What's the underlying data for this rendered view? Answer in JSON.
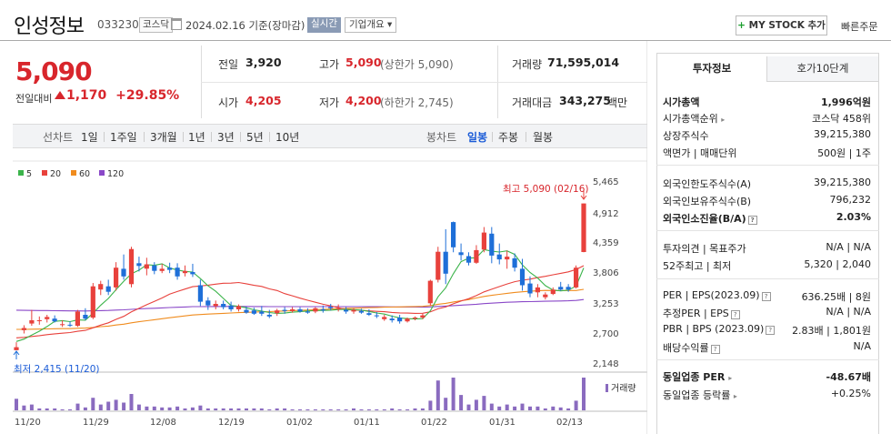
{
  "header": {
    "name": "인성정보",
    "code": "033230",
    "market_tag": "코스닥",
    "date_text": "2024.02.16 기준(장마감)",
    "realtime_label": "실시간",
    "company_info_label": "기업개요 ▾",
    "mystock_label": "MY STOCK 추가",
    "quick_order_label": "빠른주문"
  },
  "price": {
    "current": "5,090",
    "prev_label": "전일대비",
    "change": "1,170",
    "change_pct": "+29.85%"
  },
  "stats": {
    "prev_close_label": "전일",
    "prev_close": "3,920",
    "high_label": "고가",
    "high": "5,090",
    "upper_limit": "(상한가 5,090)",
    "volume_label": "거래량",
    "volume": "71,595,014",
    "open_label": "시가",
    "open": "4,205",
    "low_label": "저가",
    "low": "4,200",
    "lower_limit": "(하한가 2,745)",
    "amount_label": "거래대금",
    "amount": "343,275",
    "amount_unit": "백만"
  },
  "period_tabs": {
    "line_label": "선차트",
    "line_items": [
      "1일",
      "1주일",
      "3개월",
      "1년",
      "3년",
      "5년",
      "10년"
    ],
    "candle_label": "봉차트",
    "candle_items": [
      "일봉",
      "주봉",
      "월봉"
    ],
    "candle_selected": "일봉"
  },
  "chart_data": {
    "type": "candlestick",
    "legend": [
      "5",
      "20",
      "60",
      "120"
    ],
    "colors": {
      "ma5": "#3cb44b",
      "ma20": "#e8413c",
      "ma60": "#f08c1e",
      "ma120": "#8a48c8",
      "up": "#e8413c",
      "down": "#1e6fd8"
    },
    "y_ticks": [
      "5,465",
      "4,912",
      "4,359",
      "3,806",
      "3,253",
      "2,700",
      "2,148"
    ],
    "ylim": [
      2148,
      5465
    ],
    "x_ticks": [
      "11/20",
      "11/29",
      "12/08",
      "12/19",
      "01/02",
      "01/11",
      "01/22",
      "01/31",
      "02/13"
    ],
    "high_marker": "최고 5,090 (02/16)",
    "low_marker": "최저 2,415 (11/20)",
    "volume_label": "거래량",
    "candles": [
      {
        "o": 2415,
        "h": 2560,
        "l": 2415,
        "c": 2470
      },
      {
        "o": 2780,
        "h": 2870,
        "l": 2720,
        "c": 2820
      },
      {
        "o": 2900,
        "h": 3150,
        "l": 2860,
        "c": 2960
      },
      {
        "o": 2950,
        "h": 3030,
        "l": 2880,
        "c": 2960
      },
      {
        "o": 2980,
        "h": 3060,
        "l": 2920,
        "c": 3020
      },
      {
        "o": 2990,
        "h": 3050,
        "l": 2920,
        "c": 2940
      },
      {
        "o": 2880,
        "h": 2960,
        "l": 2840,
        "c": 2890
      },
      {
        "o": 2880,
        "h": 2940,
        "l": 2840,
        "c": 2870
      },
      {
        "o": 2860,
        "h": 3150,
        "l": 2840,
        "c": 3120
      },
      {
        "o": 3060,
        "h": 3180,
        "l": 2960,
        "c": 2990
      },
      {
        "o": 3010,
        "h": 3640,
        "l": 2980,
        "c": 3580
      },
      {
        "o": 3520,
        "h": 3680,
        "l": 3420,
        "c": 3620
      },
      {
        "o": 3580,
        "h": 3700,
        "l": 3420,
        "c": 3480
      },
      {
        "o": 3560,
        "h": 4020,
        "l": 3500,
        "c": 3920
      },
      {
        "o": 3900,
        "h": 4160,
        "l": 3700,
        "c": 3760
      },
      {
        "o": 3620,
        "h": 4300,
        "l": 3560,
        "c": 4260
      },
      {
        "o": 4000,
        "h": 4120,
        "l": 3850,
        "c": 3950
      },
      {
        "o": 3900,
        "h": 4100,
        "l": 3780,
        "c": 3980
      },
      {
        "o": 3960,
        "h": 4020,
        "l": 3800,
        "c": 3860
      },
      {
        "o": 3860,
        "h": 3990,
        "l": 3820,
        "c": 3900
      },
      {
        "o": 3920,
        "h": 4010,
        "l": 3820,
        "c": 3880
      },
      {
        "o": 3920,
        "h": 4000,
        "l": 3700,
        "c": 3760
      },
      {
        "o": 3820,
        "h": 3960,
        "l": 3760,
        "c": 3860
      },
      {
        "o": 3840,
        "h": 3990,
        "l": 3750,
        "c": 3800
      },
      {
        "o": 3600,
        "h": 3700,
        "l": 3220,
        "c": 3300
      },
      {
        "o": 3320,
        "h": 3380,
        "l": 3150,
        "c": 3230
      },
      {
        "o": 3220,
        "h": 3320,
        "l": 3160,
        "c": 3260
      },
      {
        "o": 3260,
        "h": 3320,
        "l": 3160,
        "c": 3200
      },
      {
        "o": 3230,
        "h": 3300,
        "l": 3120,
        "c": 3160
      },
      {
        "o": 3160,
        "h": 3250,
        "l": 3120,
        "c": 3220
      },
      {
        "o": 3150,
        "h": 3210,
        "l": 3080,
        "c": 3100
      },
      {
        "o": 3140,
        "h": 3190,
        "l": 3060,
        "c": 3080
      },
      {
        "o": 3120,
        "h": 3220,
        "l": 3040,
        "c": 3080
      },
      {
        "o": 3060,
        "h": 3150,
        "l": 3000,
        "c": 3030
      },
      {
        "o": 3090,
        "h": 3170,
        "l": 3040,
        "c": 3140
      },
      {
        "o": 3150,
        "h": 3200,
        "l": 3080,
        "c": 3130
      },
      {
        "o": 3130,
        "h": 3200,
        "l": 3100,
        "c": 3160
      },
      {
        "o": 3160,
        "h": 3200,
        "l": 3100,
        "c": 3120
      },
      {
        "o": 3120,
        "h": 3180,
        "l": 3080,
        "c": 3100
      },
      {
        "o": 3120,
        "h": 3200,
        "l": 3090,
        "c": 3180
      },
      {
        "o": 3160,
        "h": 3230,
        "l": 3100,
        "c": 3140
      },
      {
        "o": 3200,
        "h": 3260,
        "l": 3140,
        "c": 3180
      },
      {
        "o": 3170,
        "h": 3250,
        "l": 3120,
        "c": 3180
      },
      {
        "o": 3150,
        "h": 3200,
        "l": 3080,
        "c": 3120
      },
      {
        "o": 3120,
        "h": 3180,
        "l": 3080,
        "c": 3150
      },
      {
        "o": 3130,
        "h": 3170,
        "l": 3080,
        "c": 3100
      },
      {
        "o": 3090,
        "h": 3160,
        "l": 3040,
        "c": 3060
      },
      {
        "o": 3050,
        "h": 3110,
        "l": 3000,
        "c": 3040
      },
      {
        "o": 2980,
        "h": 3060,
        "l": 2950,
        "c": 3020
      },
      {
        "o": 2990,
        "h": 3050,
        "l": 2920,
        "c": 2960
      },
      {
        "o": 3010,
        "h": 3060,
        "l": 2900,
        "c": 2940
      },
      {
        "o": 2940,
        "h": 3010,
        "l": 2920,
        "c": 2990
      },
      {
        "o": 2990,
        "h": 3030,
        "l": 2960,
        "c": 3010
      },
      {
        "o": 3010,
        "h": 3080,
        "l": 2980,
        "c": 3050
      },
      {
        "o": 3270,
        "h": 3700,
        "l": 3230,
        "c": 3680
      },
      {
        "o": 3700,
        "h": 4300,
        "l": 3650,
        "c": 4210
      },
      {
        "o": 4210,
        "h": 4620,
        "l": 3620,
        "c": 3810
      },
      {
        "o": 4750,
        "h": 4760,
        "l": 4200,
        "c": 4290
      },
      {
        "o": 4200,
        "h": 4360,
        "l": 4050,
        "c": 4150
      },
      {
        "o": 4130,
        "h": 4200,
        "l": 3960,
        "c": 4010
      },
      {
        "o": 4010,
        "h": 4330,
        "l": 3990,
        "c": 4240
      },
      {
        "o": 4250,
        "h": 4660,
        "l": 4200,
        "c": 4560
      },
      {
        "o": 4540,
        "h": 4660,
        "l": 4000,
        "c": 4140
      },
      {
        "o": 4160,
        "h": 4360,
        "l": 3980,
        "c": 4070
      },
      {
        "o": 4070,
        "h": 4230,
        "l": 3900,
        "c": 4120
      },
      {
        "o": 4090,
        "h": 4180,
        "l": 3850,
        "c": 3920
      },
      {
        "o": 3900,
        "h": 4080,
        "l": 3500,
        "c": 3600
      },
      {
        "o": 3630,
        "h": 3760,
        "l": 3380,
        "c": 3450
      },
      {
        "o": 3470,
        "h": 3620,
        "l": 3380,
        "c": 3560
      },
      {
        "o": 3380,
        "h": 3470,
        "l": 3340,
        "c": 3430
      },
      {
        "o": 3440,
        "h": 3560,
        "l": 3420,
        "c": 3520
      },
      {
        "o": 3570,
        "h": 3660,
        "l": 3500,
        "c": 3520
      },
      {
        "o": 3570,
        "h": 3620,
        "l": 3480,
        "c": 3520
      },
      {
        "o": 3560,
        "h": 3960,
        "l": 3540,
        "c": 3920
      },
      {
        "o": 4205,
        "h": 5090,
        "l": 4200,
        "c": 5090
      }
    ],
    "volume": [
      1.2,
      0.5,
      0.6,
      0.2,
      0.2,
      0.2,
      0.1,
      0.1,
      0.7,
      0.3,
      1.3,
      0.6,
      0.9,
      1.1,
      0.8,
      1.7,
      0.6,
      0.4,
      0.4,
      0.3,
      0.3,
      0.4,
      0.2,
      0.3,
      0.5,
      0.2,
      0.2,
      0.2,
      0.2,
      0.2,
      0.2,
      0.2,
      0.2,
      0.1,
      0.2,
      0.2,
      0.1,
      0.1,
      0.1,
      0.1,
      0.1,
      0.1,
      0.1,
      0.1,
      0.2,
      0.1,
      0.1,
      0.1,
      0.1,
      0.2,
      0.1,
      0.1,
      0.2,
      0.2,
      1.0,
      3.1,
      1.3,
      3.4,
      1.6,
      0.6,
      1.1,
      1.5,
      0.7,
      0.4,
      0.6,
      0.4,
      0.7,
      0.4,
      0.4,
      0.2,
      0.4,
      0.3,
      0.2,
      1.0,
      3.4
    ]
  },
  "info_panel": {
    "tab_active": "투자정보",
    "tab_other": "호가10단계",
    "rows1": [
      {
        "label": "시가총액",
        "value": "1,996억원",
        "bold": true
      },
      {
        "label": "시가총액순위",
        "value": "코스닥 458위"
      },
      {
        "label": "상장주식수",
        "value": "39,215,380"
      },
      {
        "label": "액면가 | 매매단위",
        "value": "500원 | 1주"
      }
    ],
    "rows2": [
      {
        "label": "외국인한도주식수(A)",
        "value": "39,215,380"
      },
      {
        "label": "외국인보유주식수(B)",
        "value": "796,232"
      },
      {
        "label": "외국인소진율(B/A)",
        "value": "2.03%",
        "bold": true
      }
    ],
    "rows3": [
      {
        "label": "투자의견 | 목표주가",
        "value": "N/A | N/A"
      },
      {
        "label": "52주최고 | 최저",
        "value": "5,320 | 2,040"
      }
    ],
    "rows4": [
      {
        "label": "PER | EPS(2023.09)",
        "value": "636.25배 | 8원"
      },
      {
        "label": "추정PER | EPS",
        "value": "N/A | N/A"
      },
      {
        "label": "PBR | BPS (2023.09)",
        "value": "2.83배 | 1,801원"
      },
      {
        "label": "배당수익률",
        "value": "N/A"
      }
    ],
    "rows5": [
      {
        "label": "동일업종 PER",
        "value": "-48.67배",
        "bold": true
      },
      {
        "label": "동일업종 등락률",
        "value": "+0.25%",
        "red": true
      }
    ]
  }
}
